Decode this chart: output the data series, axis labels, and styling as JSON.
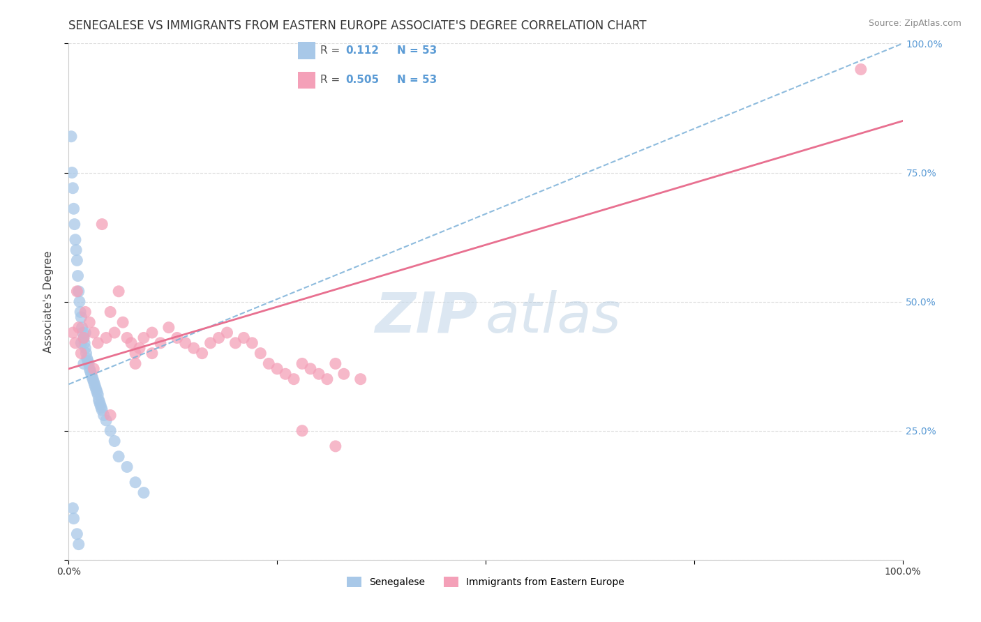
{
  "title": "SENEGALESE VS IMMIGRANTS FROM EASTERN EUROPE ASSOCIATE'S DEGREE CORRELATION CHART",
  "source": "Source: ZipAtlas.com",
  "ylabel": "Associate's Degree",
  "xlim": [
    0.0,
    100.0
  ],
  "ylim": [
    0.0,
    100.0
  ],
  "R_blue": 0.112,
  "N_blue": 53,
  "R_pink": 0.505,
  "N_pink": 53,
  "blue_scatter_color": "#a8c8e8",
  "pink_scatter_color": "#f4a0b8",
  "blue_line_color": "#7ab0d8",
  "pink_line_color": "#e87090",
  "grid_color": "#dddddd",
  "background_color": "#ffffff",
  "right_tick_color": "#5b9bd5",
  "title_fontsize": 12,
  "axis_label_fontsize": 11,
  "tick_fontsize": 10,
  "legend_fontsize": 11,
  "blue_x": [
    0.3,
    0.4,
    0.5,
    0.6,
    0.7,
    0.8,
    0.9,
    1.0,
    1.1,
    1.2,
    1.3,
    1.4,
    1.5,
    1.6,
    1.7,
    1.8,
    1.9,
    2.0,
    2.1,
    2.2,
    2.3,
    2.4,
    2.5,
    2.6,
    2.7,
    2.8,
    2.9,
    3.0,
    3.1,
    3.2,
    3.3,
    3.4,
    3.5,
    3.6,
    3.7,
    3.8,
    3.9,
    4.0,
    4.2,
    4.5,
    5.0,
    5.5,
    6.0,
    7.0,
    8.0,
    9.0,
    0.5,
    0.6,
    1.0,
    1.2,
    1.5,
    1.8,
    2.0
  ],
  "blue_y": [
    82.0,
    75.0,
    72.0,
    68.0,
    65.0,
    62.0,
    60.0,
    58.0,
    55.0,
    52.0,
    50.0,
    48.0,
    47.0,
    45.0,
    44.0,
    43.0,
    42.0,
    41.0,
    40.0,
    39.0,
    38.5,
    38.0,
    37.0,
    36.5,
    36.0,
    35.5,
    35.0,
    34.5,
    34.0,
    33.5,
    33.0,
    32.5,
    32.0,
    31.0,
    30.5,
    30.0,
    29.5,
    29.0,
    28.0,
    27.0,
    25.0,
    23.0,
    20.0,
    18.0,
    15.0,
    13.0,
    10.0,
    8.0,
    5.0,
    3.0,
    42.0,
    38.0,
    44.0
  ],
  "pink_x": [
    0.5,
    0.8,
    1.0,
    1.2,
    1.5,
    1.8,
    2.0,
    2.5,
    3.0,
    3.5,
    4.0,
    4.5,
    5.0,
    5.5,
    6.0,
    6.5,
    7.0,
    7.5,
    8.0,
    8.5,
    9.0,
    10.0,
    11.0,
    12.0,
    13.0,
    14.0,
    15.0,
    16.0,
    17.0,
    18.0,
    19.0,
    20.0,
    21.0,
    22.0,
    23.0,
    24.0,
    25.0,
    26.0,
    27.0,
    28.0,
    29.0,
    30.0,
    31.0,
    32.0,
    33.0,
    35.0,
    8.0,
    10.0,
    3.0,
    5.0,
    28.0,
    32.0,
    95.0
  ],
  "pink_y": [
    44.0,
    42.0,
    52.0,
    45.0,
    40.0,
    43.0,
    48.0,
    46.0,
    44.0,
    42.0,
    65.0,
    43.0,
    48.0,
    44.0,
    52.0,
    46.0,
    43.0,
    42.0,
    40.0,
    41.0,
    43.0,
    44.0,
    42.0,
    45.0,
    43.0,
    42.0,
    41.0,
    40.0,
    42.0,
    43.0,
    44.0,
    42.0,
    43.0,
    42.0,
    40.0,
    38.0,
    37.0,
    36.0,
    35.0,
    38.0,
    37.0,
    36.0,
    35.0,
    38.0,
    36.0,
    35.0,
    38.0,
    40.0,
    37.0,
    28.0,
    25.0,
    22.0,
    95.0
  ],
  "blue_line_x0": 0.0,
  "blue_line_y0": 34.0,
  "blue_line_x1": 100.0,
  "blue_line_y1": 100.0,
  "pink_line_x0": 0.0,
  "pink_line_y0": 37.0,
  "pink_line_x1": 100.0,
  "pink_line_y1": 85.0
}
